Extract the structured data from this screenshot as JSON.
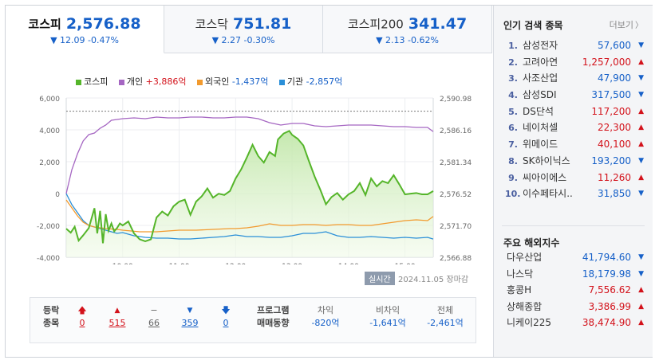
{
  "tabs": [
    {
      "name": "코스피",
      "value": "2,576.88",
      "change": "▼ 12.09 -0.47%",
      "active": true
    },
    {
      "name": "코스닥",
      "value": "751.81",
      "change": "▼ 2.27 -0.30%",
      "active": false
    },
    {
      "name": "코스피200",
      "value": "341.47",
      "change": "▼ 2.13 -0.62%",
      "active": false
    }
  ],
  "legend": [
    {
      "label": "코스피",
      "color": "#55b52a"
    },
    {
      "label": "개인",
      "value": "+3,886억",
      "value_color": "#d3121b",
      "color": "#a566c2"
    },
    {
      "label": "외국인",
      "value": "-1,437억",
      "value_color": "#1660c8",
      "color": "#f29a2e"
    },
    {
      "label": "기관",
      "value": "-2,857억",
      "value_color": "#1660c8",
      "color": "#2a8fd8"
    }
  ],
  "chart_data": {
    "type": "line",
    "x_ticks": [
      "10:00",
      "11:00",
      "12:00",
      "13:00",
      "14:00",
      "15:00"
    ],
    "y_left_ticks": [
      "6,000",
      "4,000",
      "2,000",
      "0",
      "-2,000",
      "-4,000"
    ],
    "y_left_range": [
      -4000,
      6000
    ],
    "y_right_ticks": [
      "2,590.98",
      "2,586.16",
      "2,581.34",
      "2,576.52",
      "2,571.70",
      "2,566.88"
    ],
    "y_right_range": [
      2566.88,
      2590.98
    ],
    "reference_level": 2588.97,
    "x_range": [
      9.0,
      15.5
    ],
    "series": [
      {
        "name": "코스피",
        "axis": "right",
        "color": "#55b52a",
        "t": [
          9.0,
          9.08,
          9.15,
          9.22,
          9.3,
          9.4,
          9.5,
          9.55,
          9.6,
          9.65,
          9.7,
          9.75,
          9.8,
          9.85,
          9.9,
          9.95,
          10.0,
          10.1,
          10.2,
          10.3,
          10.4,
          10.5,
          10.6,
          10.7,
          10.8,
          10.9,
          11.0,
          11.1,
          11.2,
          11.3,
          11.4,
          11.5,
          11.6,
          11.7,
          11.8,
          11.9,
          12.0,
          12.1,
          12.2,
          12.3,
          12.4,
          12.5,
          12.6,
          12.7,
          12.75,
          12.85,
          12.95,
          13.0,
          13.1,
          13.2,
          13.3,
          13.4,
          13.5,
          13.6,
          13.7,
          13.8,
          13.9,
          14.0,
          14.1,
          14.2,
          14.3,
          14.4,
          14.5,
          14.6,
          14.7,
          14.8,
          14.9,
          15.0,
          15.1,
          15.2,
          15.3,
          15.4,
          15.5
        ],
        "v": [
          2571.2,
          2570.6,
          2571.5,
          2569.4,
          2570.2,
          2571.3,
          2574.3,
          2570.5,
          2573.9,
          2569.0,
          2573.4,
          2570.9,
          2572.0,
          2570.8,
          2571.3,
          2572.0,
          2571.7,
          2572.3,
          2570.5,
          2569.6,
          2569.3,
          2569.6,
          2572.9,
          2573.8,
          2573.2,
          2574.6,
          2575.3,
          2575.6,
          2573.3,
          2575.3,
          2576.1,
          2577.3,
          2575.9,
          2576.5,
          2576.3,
          2576.9,
          2578.8,
          2580.2,
          2582.0,
          2583.9,
          2582.2,
          2581.2,
          2582.8,
          2582.2,
          2584.7,
          2585.6,
          2586.0,
          2585.4,
          2584.8,
          2583.8,
          2581.4,
          2579.1,
          2577.1,
          2574.9,
          2576.0,
          2576.6,
          2575.6,
          2576.4,
          2576.9,
          2578.1,
          2576.3,
          2578.8,
          2577.6,
          2578.4,
          2578.1,
          2579.3,
          2577.9,
          2576.4,
          2576.5,
          2576.6,
          2576.4,
          2576.4,
          2576.9
        ]
      },
      {
        "name": "개인",
        "axis": "left",
        "color": "#a566c2",
        "t": [
          9.0,
          9.1,
          9.2,
          9.3,
          9.4,
          9.5,
          9.6,
          9.7,
          9.8,
          9.9,
          10.0,
          10.2,
          10.4,
          10.6,
          10.8,
          11.0,
          11.2,
          11.4,
          11.6,
          11.8,
          12.0,
          12.2,
          12.4,
          12.6,
          12.8,
          13.0,
          13.2,
          13.4,
          13.6,
          13.8,
          14.0,
          14.2,
          14.4,
          14.6,
          14.8,
          15.0,
          15.2,
          15.4,
          15.5
        ],
        "v": [
          0,
          1500,
          2500,
          3300,
          3700,
          3800,
          4100,
          4300,
          4600,
          4650,
          4700,
          4750,
          4700,
          4800,
          4750,
          4750,
          4800,
          4800,
          4750,
          4750,
          4800,
          4800,
          4700,
          4450,
          4300,
          4400,
          4400,
          4250,
          4200,
          4250,
          4300,
          4300,
          4300,
          4250,
          4200,
          4200,
          4150,
          4150,
          3886
        ]
      },
      {
        "name": "외국인",
        "axis": "left",
        "color": "#f29a2e",
        "t": [
          9.0,
          9.1,
          9.2,
          9.3,
          9.4,
          9.5,
          9.7,
          9.9,
          10.0,
          10.3,
          10.6,
          10.8,
          11.0,
          11.3,
          11.6,
          11.9,
          12.0,
          12.2,
          12.4,
          12.6,
          12.8,
          13.0,
          13.2,
          13.4,
          13.6,
          13.8,
          14.0,
          14.2,
          14.4,
          14.6,
          14.8,
          15.0,
          15.2,
          15.4,
          15.5
        ],
        "v": [
          -400,
          -900,
          -1400,
          -1800,
          -2000,
          -2100,
          -2200,
          -2250,
          -2300,
          -2400,
          -2400,
          -2350,
          -2300,
          -2300,
          -2250,
          -2200,
          -2200,
          -2150,
          -2050,
          -1900,
          -2000,
          -2000,
          -1950,
          -1950,
          -2000,
          -1950,
          -1950,
          -2000,
          -2000,
          -1900,
          -1800,
          -1700,
          -1650,
          -1700,
          -1437
        ]
      },
      {
        "name": "기관",
        "axis": "left",
        "color": "#2a8fd8",
        "t": [
          9.0,
          9.1,
          9.2,
          9.3,
          9.4,
          9.5,
          9.6,
          9.7,
          9.8,
          9.9,
          10.0,
          10.2,
          10.4,
          10.6,
          10.8,
          11.0,
          11.2,
          11.4,
          11.6,
          11.8,
          12.0,
          12.2,
          12.4,
          12.6,
          12.8,
          13.0,
          13.2,
          13.4,
          13.6,
          13.8,
          14.0,
          14.2,
          14.4,
          14.6,
          14.8,
          15.0,
          15.2,
          15.4,
          15.5
        ],
        "v": [
          0,
          -700,
          -1200,
          -1700,
          -2000,
          -2100,
          -2200,
          -2300,
          -2400,
          -2500,
          -2450,
          -2650,
          -2750,
          -2800,
          -2800,
          -2850,
          -2850,
          -2800,
          -2750,
          -2700,
          -2600,
          -2700,
          -2700,
          -2750,
          -2750,
          -2650,
          -2500,
          -2500,
          -2400,
          -2650,
          -2750,
          -2750,
          -2700,
          -2750,
          -2800,
          -2750,
          -2800,
          -2750,
          -2857
        ]
      }
    ]
  },
  "realtime_badge": "실시간",
  "timestamp": "2024.11.05 장마감",
  "stats": {
    "label1": "등락",
    "label2": "종목",
    "cols": [
      {
        "arrow": "🡅",
        "value": "0",
        "color": "r"
      },
      {
        "arrow": "▲",
        "value": "515",
        "color": "r"
      },
      {
        "arrow": "−",
        "value": "66",
        "color": "g"
      },
      {
        "arrow": "▼",
        "value": "359",
        "color": "b"
      },
      {
        "arrow": "🡇",
        "value": "0",
        "color": "b"
      }
    ],
    "program_label1": "프로그램",
    "program_label2": "매매동향",
    "program": [
      {
        "head": "차익",
        "value": "-820억"
      },
      {
        "head": "비차익",
        "value": "-1,641억"
      },
      {
        "head": "전체",
        "value": "-2,461억"
      }
    ]
  },
  "popular": {
    "title": "인기 검색 종목",
    "more": "더보기",
    "items": [
      {
        "rank": "1.",
        "name": "삼성전자",
        "price": "57,600",
        "dir": "down"
      },
      {
        "rank": "2.",
        "name": "고려아연",
        "price": "1,257,000",
        "dir": "up"
      },
      {
        "rank": "3.",
        "name": "사조산업",
        "price": "47,900",
        "dir": "down"
      },
      {
        "rank": "4.",
        "name": "삼성SDI",
        "price": "317,500",
        "dir": "down"
      },
      {
        "rank": "5.",
        "name": "DS단석",
        "price": "117,200",
        "dir": "up"
      },
      {
        "rank": "6.",
        "name": "네이처셀",
        "price": "22,300",
        "dir": "up"
      },
      {
        "rank": "7.",
        "name": "위메이드",
        "price": "40,100",
        "dir": "up"
      },
      {
        "rank": "8.",
        "name": "SK하이닉스",
        "price": "193,200",
        "dir": "down"
      },
      {
        "rank": "9.",
        "name": "씨아이에스",
        "price": "11,260",
        "dir": "up"
      },
      {
        "rank": "10.",
        "name": "이수페타시..",
        "price": "31,850",
        "dir": "down"
      }
    ]
  },
  "world": {
    "title": "주요 해외지수",
    "items": [
      {
        "name": "다우산업",
        "value": "41,794.60",
        "dir": "down"
      },
      {
        "name": "나스닥",
        "value": "18,179.98",
        "dir": "down"
      },
      {
        "name": "홍콩H",
        "value": "7,556.62",
        "dir": "up"
      },
      {
        "name": "상해종합",
        "value": "3,386.99",
        "dir": "up"
      },
      {
        "name": "니케이225",
        "value": "38,474.90",
        "dir": "up"
      }
    ]
  }
}
